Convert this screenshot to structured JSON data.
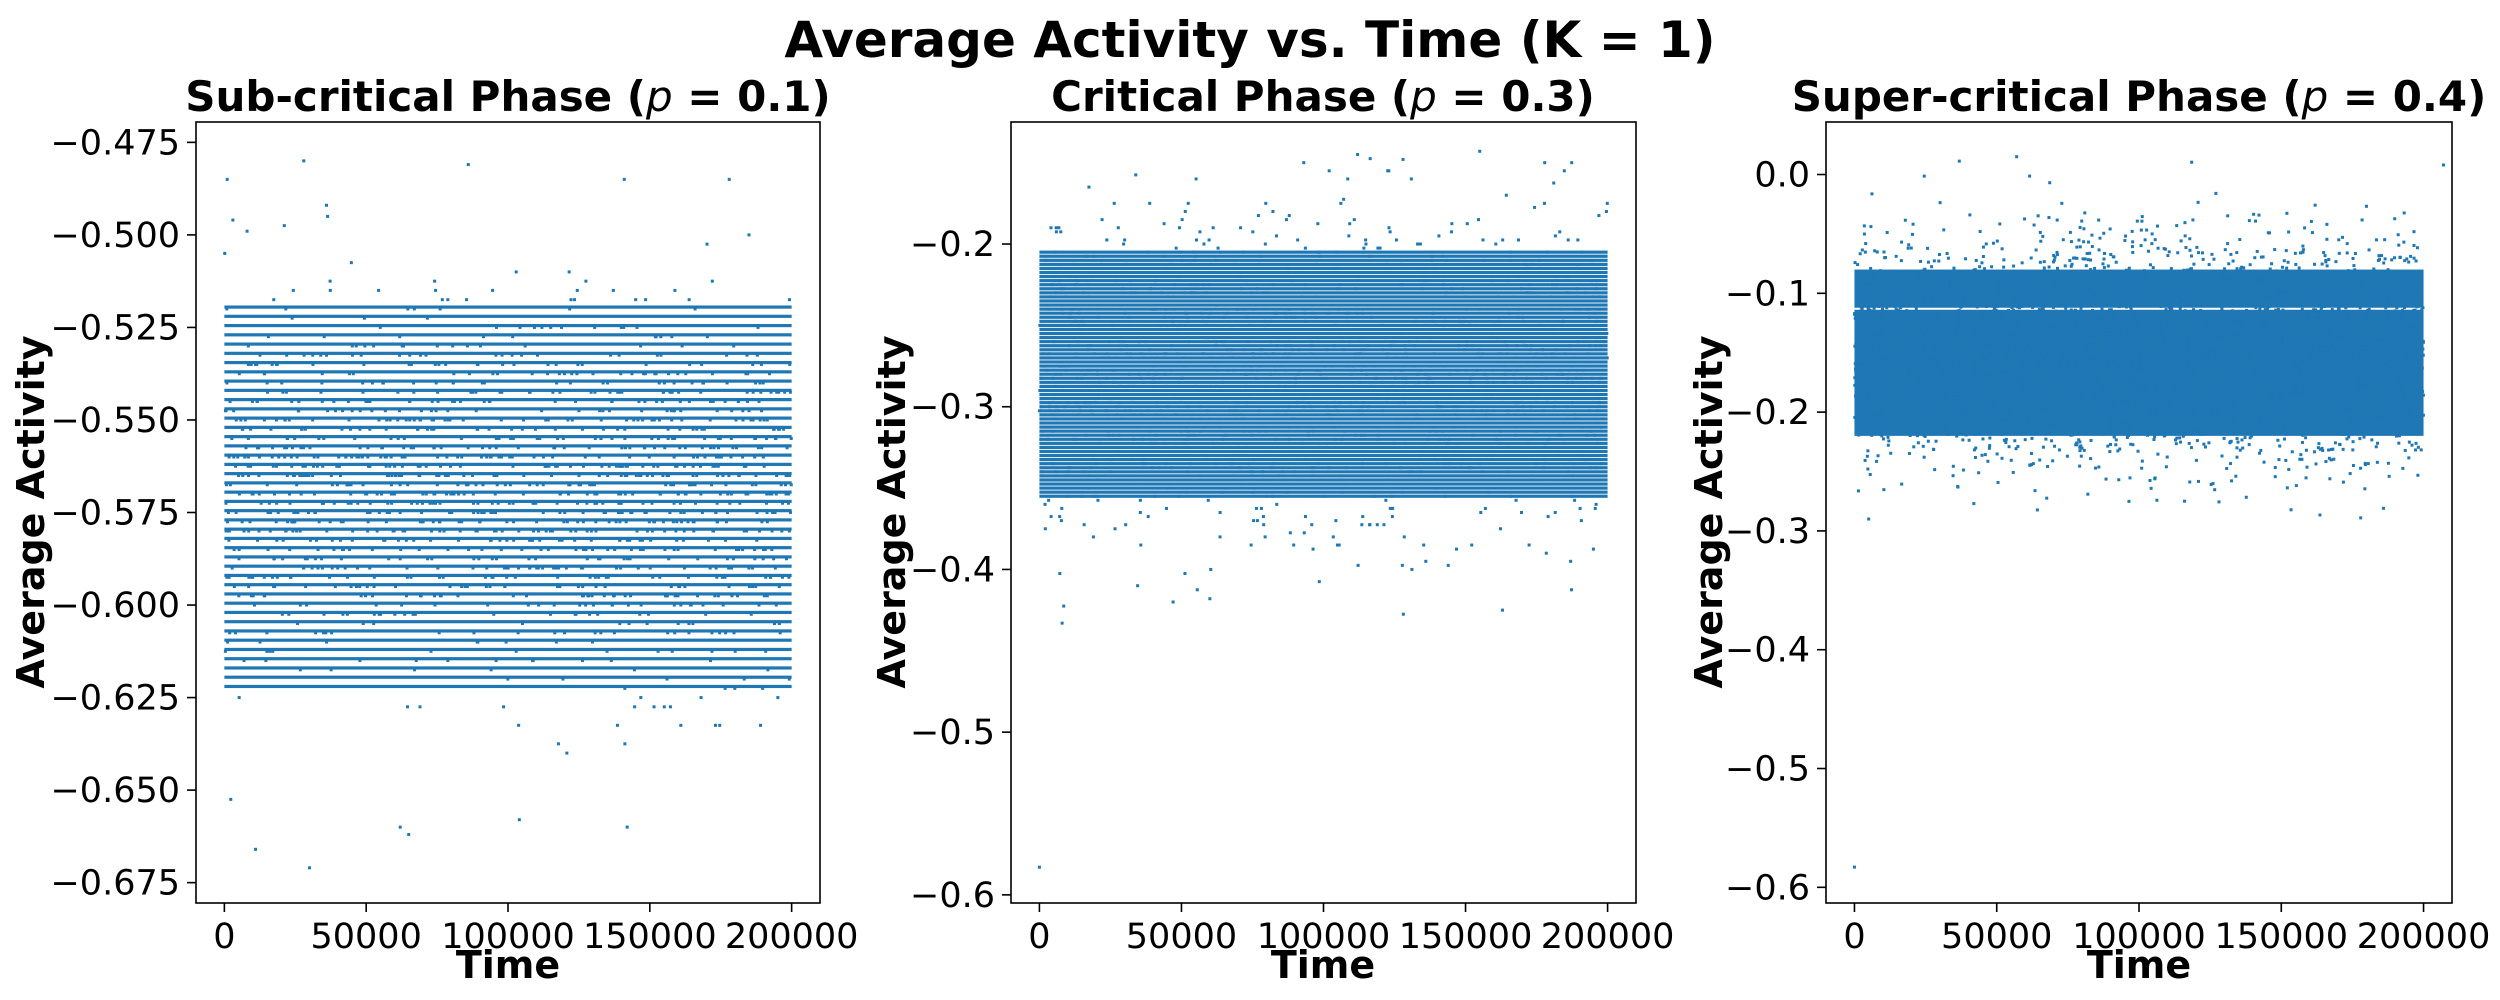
{
  "figure": {
    "suptitle": "Average Activity vs. Time (K = 1)"
  },
  "colors": {
    "points": "#1f77b4",
    "axes": "#000000"
  },
  "chart_data": [
    {
      "type": "scatter",
      "title": "Sub-critical Phase (p = 0.1)",
      "title_prefix": "Sub-critical Phase (",
      "title_var": "p",
      "title_suffix": " = 0.1)",
      "xlabel": "Time",
      "ylabel": "Average Activity",
      "xlim": [
        -10000,
        210000
      ],
      "ylim": [
        -0.6805,
        -0.4695
      ],
      "xticks": [
        0,
        50000,
        100000,
        150000,
        200000
      ],
      "xtick_labels": [
        "0",
        "50000",
        "100000",
        "150000",
        "200000"
      ],
      "yticks": [
        -0.675,
        -0.65,
        -0.625,
        -0.6,
        -0.575,
        -0.55,
        -0.525,
        -0.5,
        -0.475
      ],
      "ytick_labels": [
        "−0.675",
        "−0.650",
        "−0.625",
        "−0.600",
        "−0.575",
        "−0.550",
        "−0.525",
        "−0.500",
        "−0.475"
      ],
      "band_center": -0.57,
      "band_spread": 0.024,
      "band_min": -0.665,
      "band_max": -0.49,
      "dense_range": [
        -0.622,
        -0.518
      ],
      "level_step": 0.0025,
      "x_range": [
        0,
        200000
      ],
      "outliers": [
        [
          1000,
          -0.485
        ],
        [
          3000,
          -0.496
        ],
        [
          8000,
          -0.499
        ],
        [
          11000,
          -0.666
        ],
        [
          28000,
          -0.48
        ],
        [
          30000,
          -0.671
        ],
        [
          36000,
          -0.492
        ],
        [
          62000,
          -0.66
        ],
        [
          65000,
          -0.662
        ],
        [
          86000,
          -0.481
        ],
        [
          104000,
          -0.658
        ],
        [
          141000,
          -0.485
        ],
        [
          142000,
          -0.66
        ],
        [
          178000,
          -0.485
        ]
      ]
    },
    {
      "type": "scatter",
      "title": "Critical Phase (p = 0.3)",
      "title_prefix": "Critical Phase (",
      "title_var": "p",
      "title_suffix": " = 0.3)",
      "xlabel": "Time",
      "ylabel": "Average Activity",
      "xlim": [
        -10000,
        210000
      ],
      "ylim": [
        -0.605,
        -0.125
      ],
      "xticks": [
        0,
        50000,
        100000,
        150000,
        200000
      ],
      "xtick_labels": [
        "0",
        "50000",
        "100000",
        "150000",
        "200000"
      ],
      "yticks": [
        -0.6,
        -0.5,
        -0.4,
        -0.3,
        -0.2
      ],
      "ytick_labels": [
        "−0.6",
        "−0.5",
        "−0.4",
        "−0.3",
        "−0.2"
      ],
      "band_center": -0.28,
      "band_spread": 0.05,
      "band_min": -0.43,
      "band_max": -0.145,
      "dense_range": [
        -0.355,
        -0.205
      ],
      "level_step": 0.0025,
      "x_range": [
        0,
        200000
      ],
      "outliers": [
        [
          0,
          -0.583
        ],
        [
          8000,
          -0.433
        ],
        [
          60000,
          -0.418
        ],
        [
          112000,
          -0.145
        ],
        [
          128000,
          -0.148
        ],
        [
          155000,
          -0.143
        ],
        [
          163000,
          -0.425
        ]
      ]
    },
    {
      "type": "scatter",
      "title": "Super-critical Phase (p = 0.4)",
      "title_prefix": "Super-critical Phase (",
      "title_var": "p",
      "title_suffix": " = 0.4)",
      "xlabel": "Time",
      "ylabel": "Average Activity",
      "xlim": [
        -10000,
        210000
      ],
      "ylim": [
        -0.6132,
        0.0442
      ],
      "xticks": [
        0,
        50000,
        100000,
        150000,
        200000
      ],
      "xtick_labels": [
        "0",
        "50000",
        "100000",
        "150000",
        "200000"
      ],
      "yticks": [
        -0.6,
        -0.5,
        -0.4,
        -0.3,
        -0.2,
        -0.1,
        0.0
      ],
      "ytick_labels": [
        "−0.6",
        "−0.5",
        "−0.4",
        "−0.3",
        "−0.2",
        "−0.1",
        "0.0"
      ],
      "band_center": -0.15,
      "band_spread": 0.045,
      "band_min": -0.29,
      "band_max": 0.015,
      "dense_range": [
        -0.22,
        -0.08
      ],
      "level_step": 0,
      "gap_value": -0.113,
      "x_range": [
        0,
        200000
      ],
      "outliers": [
        [
          0,
          -0.583
        ],
        [
          5000,
          -0.29
        ],
        [
          57000,
          0.015
        ],
        [
          116000,
          -0.275
        ],
        [
          207000,
          0.008
        ]
      ]
    }
  ]
}
